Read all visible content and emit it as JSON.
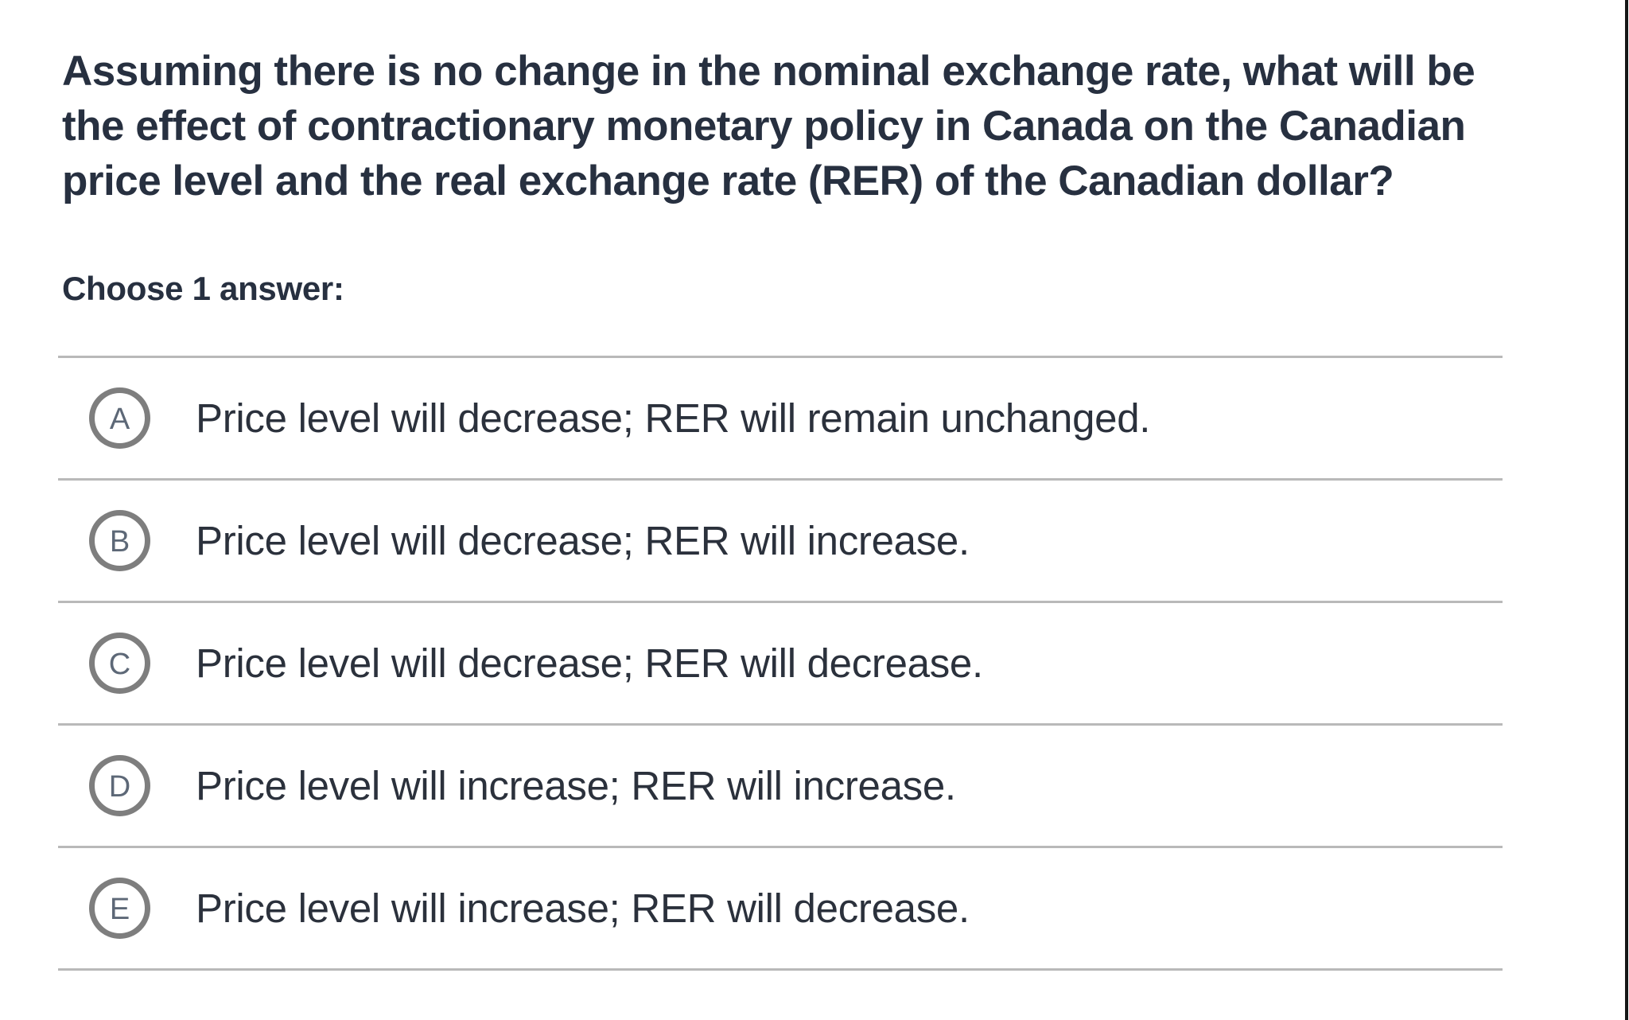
{
  "question": {
    "lines": [
      "Assuming there is no change in the nominal exchange rate, what will be",
      "the effect of contractionary monetary policy in Canada on the Canadian",
      "price level and the real exchange rate (RER) of the Canadian dollar?"
    ]
  },
  "prompt": "Choose 1 answer:",
  "options": [
    {
      "letter": "A",
      "text": "Price level will decrease; RER will remain unchanged."
    },
    {
      "letter": "B",
      "text": "Price level will decrease; RER will increase."
    },
    {
      "letter": "C",
      "text": "Price level will decrease; RER will decrease."
    },
    {
      "letter": "D",
      "text": "Price level will increase; RER will increase."
    },
    {
      "letter": "E",
      "text": "Price level will increase; RER will decrease."
    }
  ],
  "colors": {
    "question_text": "#273040",
    "option_text": "#2b313c",
    "divider": "#b9b9b9",
    "radio_border": "#7e7e7e",
    "radio_letter": "#5d6877",
    "edge_line": "#161616"
  }
}
